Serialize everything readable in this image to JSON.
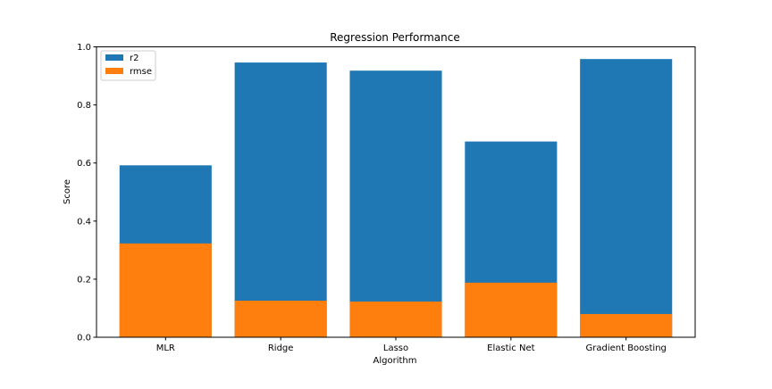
{
  "chart_data": {
    "type": "bar",
    "title": "Regression Performance",
    "xlabel": "Algorithm",
    "ylabel": "Score",
    "categories": [
      "MLR",
      "Ridge",
      "Lasso",
      "Elastic Net",
      "Gradient Boosting"
    ],
    "series": [
      {
        "name": "r2",
        "color": "#1f77b4",
        "values": [
          0.592,
          0.946,
          0.918,
          0.674,
          0.958
        ]
      },
      {
        "name": "rmse",
        "color": "#ff7f0e",
        "values": [
          0.323,
          0.126,
          0.123,
          0.188,
          0.08
        ]
      }
    ],
    "ylim": [
      0,
      1.0
    ],
    "yticks": [
      "0.0",
      "0.2",
      "0.4",
      "0.6",
      "0.8",
      "1.0"
    ],
    "grid": false,
    "legend_position": "top-left"
  }
}
